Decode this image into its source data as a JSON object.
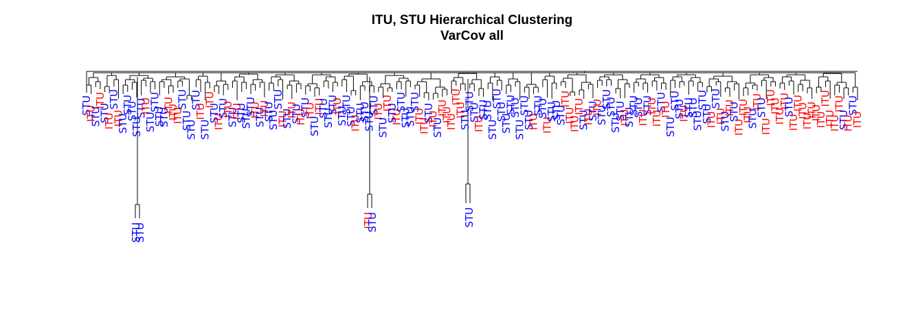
{
  "chart_data": {
    "type": "dendrogram",
    "title": "ITU, STU Hierarchical Clustering",
    "subtitle": "VarCov all",
    "group_colors": {
      "ITU": "#ff0000",
      "STU": "#0000ff"
    },
    "leaf_order": [
      "STU",
      "ITU",
      "STU",
      "ITU",
      "STU",
      "ITU",
      "STU",
      "ITU",
      "STU",
      "STU",
      "STU",
      "STU",
      "STU",
      "ITU",
      "STU",
      "STU",
      "STU",
      "STU",
      "ITU",
      "ITU",
      "ITU",
      "STU",
      "STU",
      "STU",
      "STU",
      "ITU",
      "STU",
      "ITU",
      "STU",
      "ITU",
      "STU",
      "ITU",
      "STU",
      "ITU",
      "STU",
      "STU",
      "STU",
      "ITU",
      "STU",
      "ITU",
      "STU",
      "STU",
      "STU",
      "ITU",
      "STU",
      "ITU",
      "STU",
      "ITU",
      "STU",
      "ITU",
      "STU",
      "ITU",
      "STU",
      "STU",
      "STU",
      "ITU",
      "STU",
      "STU",
      "STU",
      "ITU",
      "STU",
      "STU",
      "STU",
      "STU",
      "ITU",
      "STU",
      "ITU",
      "STU",
      "ITU",
      "STU",
      "STU",
      "STU",
      "STU",
      "ITU",
      "ITU",
      "STU",
      "ITU",
      "STU",
      "ITU",
      "ITU",
      "ITU",
      "ITU",
      "ITU",
      "STU",
      "STU",
      "STU",
      "ITU",
      "STU",
      "STU",
      "STU",
      "STU",
      "STU",
      "STU",
      "STU",
      "STU",
      "STU",
      "STU",
      "STU",
      "ITU",
      "STU",
      "STU",
      "ITU",
      "STU",
      "STU",
      "STU",
      "ITU",
      "ITU",
      "ITU",
      "ITU",
      "STU",
      "ITU",
      "STU",
      "ITU",
      "STU",
      "STU",
      "STU",
      "STU",
      "STU",
      "ITU",
      "STU",
      "STU",
      "STU",
      "ITU",
      "STU",
      "ITU",
      "ITU",
      "STU",
      "ITU",
      "STU",
      "STU",
      "STU",
      "ITU",
      "STU",
      "STU",
      "STU",
      "STU",
      "STU",
      "ITU",
      "STU",
      "ITU",
      "STU",
      "ITU",
      "STU",
      "ITU",
      "ITU",
      "ITU",
      "STU",
      "ITU",
      "STU",
      "ITU",
      "ITU",
      "ITU",
      "ITU",
      "ITU",
      "STU",
      "ITU",
      "ITU",
      "ITU",
      "ITU",
      "ITU",
      "ITU",
      "ITU",
      "ITU",
      "ITU",
      "ITU",
      "ITU",
      "STU",
      "ITU",
      "STU",
      "ITU"
    ],
    "outlier_leaves": [
      {
        "label": "STU"
      },
      {
        "label": "STU"
      },
      {
        "label": "ITU"
      },
      {
        "label": "STU"
      },
      {
        "label": "ITU"
      }
    ],
    "xlabel": "",
    "ylabel": "",
    "axes_visible": false,
    "grid": false
  }
}
